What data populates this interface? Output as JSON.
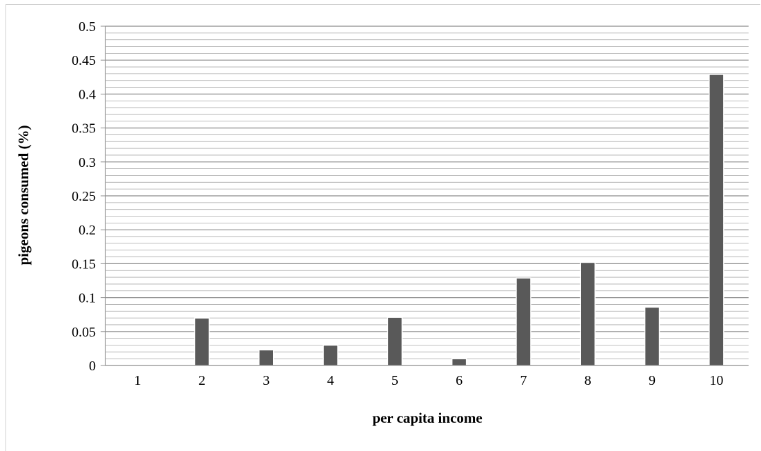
{
  "chart_data": {
    "type": "bar",
    "title": "",
    "xlabel": "per capita income",
    "ylabel": "pigeons consumed (%)",
    "categories": [
      "1",
      "2",
      "3",
      "4",
      "5",
      "6",
      "7",
      "8",
      "9",
      "10"
    ],
    "values": [
      0,
      0.07,
      0.023,
      0.03,
      0.071,
      0.01,
      0.129,
      0.152,
      0.086,
      0.429
    ],
    "ylim": [
      0,
      0.5
    ],
    "yticks": [
      "0",
      "0.05",
      "0.1",
      "0.15",
      "0.2",
      "0.25",
      "0.3",
      "0.35",
      "0.4",
      "0.45",
      "0.5"
    ],
    "major_step": 0.05,
    "minor_step": 0.01,
    "grid": true,
    "legend": "none",
    "colors": {
      "bar": "#595959",
      "grid": "#8c8c8c",
      "axis": "#8c8c8c"
    }
  }
}
